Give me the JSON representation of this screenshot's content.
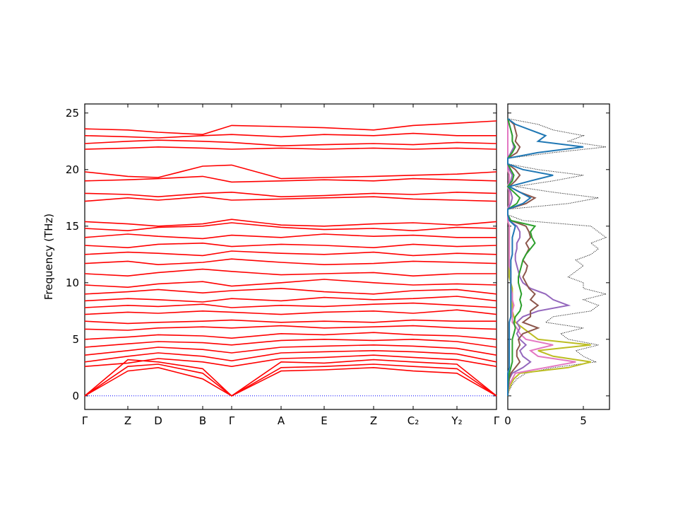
{
  "chart_data": [
    {
      "type": "line",
      "ylabel": "Frequency (THz)",
      "band_color": "#ff0000",
      "zero_line": 0,
      "zero_line_color": "#0000ff",
      "x": [
        0,
        0.61,
        1.04,
        1.67,
        2.08,
        2.78,
        3.39,
        4.09,
        4.65,
        5.27,
        5.83
      ],
      "xlim": [
        0,
        5.83
      ],
      "xticks": [
        {
          "value": 0,
          "label": "Γ"
        },
        {
          "value": 0.61,
          "label": "Z"
        },
        {
          "value": 1.04,
          "label": "D"
        },
        {
          "value": 1.67,
          "label": "B"
        },
        {
          "value": 2.08,
          "label": "Γ"
        },
        {
          "value": 2.78,
          "label": "A"
        },
        {
          "value": 3.39,
          "label": "E"
        },
        {
          "value": 4.09,
          "label": "Z"
        },
        {
          "value": 4.65,
          "label": "C₂"
        },
        {
          "value": 5.27,
          "label": "Y₂"
        },
        {
          "value": 5.83,
          "label": "Γ"
        }
      ],
      "ylim": [
        -1.2,
        25.8
      ],
      "yticks": [
        0,
        5,
        10,
        15,
        20,
        25
      ],
      "bands": [
        [
          0,
          2.2,
          2.5,
          1.5,
          0,
          2.2,
          2.3,
          2.5,
          2.2,
          2.0,
          0
        ],
        [
          0,
          2.6,
          2.8,
          2.0,
          0,
          2.5,
          2.6,
          2.8,
          2.6,
          2.4,
          0
        ],
        [
          0,
          3.2,
          3.0,
          2.4,
          0,
          3.0,
          2.9,
          3.2,
          3.0,
          2.8,
          0
        ],
        [
          2.6,
          2.9,
          3.3,
          3.0,
          2.6,
          3.3,
          3.4,
          3.6,
          3.4,
          3.2,
          2.6
        ],
        [
          3.0,
          3.5,
          3.8,
          3.5,
          3.1,
          3.8,
          3.9,
          4.0,
          3.9,
          3.7,
          3.0
        ],
        [
          3.6,
          4.0,
          4.3,
          4.1,
          3.8,
          4.3,
          4.4,
          4.5,
          4.4,
          4.2,
          3.6
        ],
        [
          4.3,
          4.6,
          4.8,
          4.7,
          4.5,
          4.9,
          5.0,
          4.9,
          5.0,
          4.8,
          4.3
        ],
        [
          5.0,
          5.2,
          5.4,
          5.3,
          5.1,
          5.5,
          5.4,
          5.6,
          5.4,
          5.3,
          5.0
        ],
        [
          5.9,
          5.8,
          6.0,
          6.1,
          6.0,
          6.2,
          6.0,
          6.1,
          6.2,
          6.0,
          5.9
        ],
        [
          6.6,
          6.4,
          6.5,
          6.6,
          6.7,
          6.5,
          6.6,
          6.5,
          6.7,
          6.6,
          6.6
        ],
        [
          7.2,
          7.4,
          7.3,
          7.5,
          7.4,
          7.2,
          7.4,
          7.5,
          7.3,
          7.6,
          7.2
        ],
        [
          7.8,
          8.0,
          7.9,
          8.1,
          7.8,
          8.0,
          7.9,
          8.1,
          8.2,
          8.0,
          7.8
        ],
        [
          8.4,
          8.6,
          8.5,
          8.3,
          8.6,
          8.4,
          8.7,
          8.5,
          8.6,
          8.8,
          8.4
        ],
        [
          9.0,
          9.2,
          9.4,
          9.1,
          9.3,
          9.5,
          9.2,
          9.0,
          9.3,
          9.4,
          9.0
        ],
        [
          9.8,
          9.6,
          9.9,
          10.1,
          9.7,
          10.0,
          10.3,
          10.0,
          9.8,
          9.9,
          9.8
        ],
        [
          10.8,
          10.6,
          10.9,
          11.2,
          11.0,
          10.7,
          10.8,
          10.9,
          10.6,
          10.8,
          10.8
        ],
        [
          11.7,
          11.9,
          11.6,
          11.8,
          12.1,
          11.8,
          11.6,
          11.7,
          11.9,
          11.8,
          11.7
        ],
        [
          12.5,
          12.7,
          12.6,
          12.4,
          12.8,
          12.6,
          12.5,
          12.7,
          12.4,
          12.6,
          12.5
        ],
        [
          13.3,
          13.1,
          13.4,
          13.5,
          13.2,
          13.4,
          13.3,
          13.1,
          13.4,
          13.2,
          13.3
        ],
        [
          14.0,
          14.3,
          14.1,
          13.9,
          14.2,
          14.0,
          14.3,
          14.1,
          14.2,
          14.0,
          14.0
        ],
        [
          14.8,
          14.6,
          14.9,
          15.0,
          15.3,
          14.9,
          14.7,
          14.8,
          14.6,
          14.9,
          14.8
        ],
        [
          15.4,
          15.2,
          15.0,
          15.2,
          15.6,
          15.1,
          15.0,
          15.2,
          15.3,
          15.1,
          15.4
        ],
        [
          17.2,
          17.5,
          17.3,
          17.6,
          17.3,
          17.4,
          17.5,
          17.6,
          17.4,
          17.3,
          17.2
        ],
        [
          17.9,
          17.8,
          17.6,
          17.9,
          18.0,
          17.6,
          17.7,
          17.9,
          17.8,
          18.0,
          17.9
        ],
        [
          19.0,
          19.1,
          19.2,
          19.4,
          18.9,
          19.0,
          19.1,
          19.0,
          19.2,
          19.1,
          19.0
        ],
        [
          19.8,
          19.4,
          19.3,
          20.3,
          20.4,
          19.2,
          19.3,
          19.4,
          19.5,
          19.6,
          19.8
        ],
        [
          21.8,
          21.9,
          22.0,
          21.9,
          21.8,
          21.9,
          21.8,
          21.9,
          21.8,
          21.9,
          21.8
        ],
        [
          22.3,
          22.5,
          22.6,
          22.5,
          22.4,
          22.1,
          22.2,
          22.3,
          22.2,
          22.4,
          22.3
        ],
        [
          23.0,
          22.9,
          22.8,
          23.0,
          23.1,
          22.9,
          23.1,
          23.0,
          23.2,
          23.0,
          23.0
        ],
        [
          23.6,
          23.5,
          23.3,
          23.1,
          23.9,
          23.8,
          23.7,
          23.5,
          23.9,
          24.1,
          24.3
        ]
      ]
    },
    {
      "type": "dos",
      "xlim": [
        0,
        6.73
      ],
      "xticks": [
        0,
        5
      ],
      "ylim": [
        -1.2,
        25.8
      ],
      "yticks": [
        0,
        5,
        10,
        15,
        20,
        25
      ],
      "y": [
        0,
        0.5,
        1,
        1.5,
        2,
        2.5,
        3,
        3.5,
        4,
        4.5,
        5,
        5.5,
        6,
        6.5,
        7,
        7.5,
        8,
        8.5,
        9,
        9.5,
        10,
        10.5,
        11,
        11.5,
        12,
        12.5,
        13,
        13.5,
        14,
        14.5,
        15,
        15.5,
        16,
        16.5,
        17,
        17.5,
        18,
        18.5,
        19,
        19.5,
        20,
        20.5,
        21,
        21.5,
        22,
        22.5,
        23,
        23.5,
        24,
        24.5
      ],
      "total": {
        "color": "#000000",
        "values": [
          0,
          0.1,
          0.3,
          0.6,
          1.2,
          3,
          5.8,
          5,
          4.5,
          6,
          4,
          3.5,
          5,
          2.5,
          3,
          5.5,
          6,
          5,
          6.5,
          5,
          5,
          4,
          4.5,
          5,
          4.5,
          5.5,
          6,
          5.5,
          6.5,
          6,
          5.5,
          1,
          0,
          0,
          4,
          6,
          3,
          0.5,
          3,
          5,
          2,
          0,
          0,
          3,
          6.5,
          4,
          5,
          3,
          2,
          0
        ]
      },
      "partials": [
        {
          "color": "#bcbd22",
          "values": [
            0,
            0.05,
            0.2,
            0.4,
            0.8,
            4,
            5.5,
            3,
            2,
            5.5,
            2,
            1.5,
            1,
            0.5,
            0.4,
            0.3,
            0.3,
            0.3,
            0.3,
            0.3,
            0.2,
            0.1,
            0.1,
            0.1,
            0.1,
            0.1,
            0.1,
            0.1,
            0.1,
            0.1,
            0.1,
            0,
            0,
            0,
            0.1,
            0.1,
            0.1,
            0,
            0.1,
            0.1,
            0,
            0,
            0,
            0,
            0,
            0,
            0,
            0,
            0,
            0
          ]
        },
        {
          "color": "#e377c2",
          "values": [
            0,
            0.03,
            0.1,
            0.3,
            0.5,
            2.5,
            4.5,
            2,
            1.5,
            3,
            1.2,
            0.8,
            0.6,
            0.3,
            0.3,
            0.3,
            0.4,
            0.3,
            0.3,
            0.2,
            0.2,
            0.2,
            0.2,
            0.1,
            0.1,
            0.1,
            0.1,
            0.1,
            0.1,
            0.1,
            0.1,
            0,
            0,
            0,
            0.1,
            0.1,
            0.1,
            0,
            0.1,
            0.1,
            0,
            0,
            0,
            0,
            0,
            0,
            0,
            0,
            0,
            0
          ]
        },
        {
          "color": "#9467bd",
          "values": [
            0,
            0.02,
            0.05,
            0.1,
            0.3,
            1,
            1.5,
            1,
            0.8,
            1.2,
            0.8,
            0.6,
            0.8,
            0.6,
            1,
            2,
            4,
            3,
            2.5,
            1.5,
            1,
            0.8,
            0.7,
            0.6,
            0.5,
            0.5,
            0.6,
            0.6,
            0.8,
            0.8,
            0.6,
            0.1,
            0,
            0,
            0.2,
            0.3,
            0.2,
            0,
            0.2,
            0.3,
            0.1,
            0,
            0,
            0.2,
            0.4,
            0.3,
            0.3,
            0.2,
            0.1,
            0
          ]
        },
        {
          "color": "#8c564b",
          "values": [
            0,
            0.02,
            0.05,
            0.1,
            0.2,
            0.5,
            0.8,
            0.6,
            0.6,
            0.8,
            0.7,
            1,
            2,
            1,
            1.5,
            1.5,
            2,
            1.5,
            1.8,
            1.4,
            1.2,
            1,
            1.2,
            1.3,
            1,
            1.2,
            1.4,
            1.2,
            1.5,
            1.4,
            1.2,
            0.2,
            0,
            0,
            1.2,
            1.8,
            0.8,
            0.1,
            0.5,
            0.8,
            0.5,
            0,
            0,
            0.6,
            0.8,
            0.5,
            0.6,
            0.5,
            0.4,
            0
          ]
        },
        {
          "color": "#2ca02c",
          "values": [
            0,
            0.01,
            0.03,
            0.05,
            0.1,
            0.2,
            0.3,
            0.3,
            0.3,
            0.3,
            0.3,
            0.4,
            0.5,
            0.4,
            0.5,
            0.8,
            0.9,
            0.8,
            0.9,
            0.8,
            0.7,
            0.7,
            0.8,
            0.9,
            1,
            1.2,
            1.5,
            1.8,
            1.6,
            1.5,
            1.8,
            0.2,
            0,
            0,
            0.6,
            0.8,
            0.4,
            0,
            0.3,
            0.4,
            0.2,
            0,
            0,
            0.3,
            0.5,
            0.3,
            0.3,
            0.2,
            0.1,
            0
          ]
        },
        {
          "color": "#1f77b4",
          "values": [
            0,
            0,
            0,
            0,
            0,
            0.1,
            0.1,
            0.1,
            0.1,
            0.1,
            0.1,
            0.1,
            0.1,
            0.1,
            0.2,
            0.2,
            0.2,
            0.2,
            0.2,
            0.2,
            0.2,
            0.2,
            0.2,
            0.2,
            0.2,
            0.3,
            0.3,
            0.3,
            0.3,
            0.4,
            0.5,
            0.1,
            0,
            0,
            1,
            1.5,
            0.8,
            0.1,
            1.5,
            3,
            1,
            0,
            0,
            2,
            5,
            2,
            2.5,
            1.5,
            0.5,
            0
          ]
        }
      ]
    }
  ]
}
